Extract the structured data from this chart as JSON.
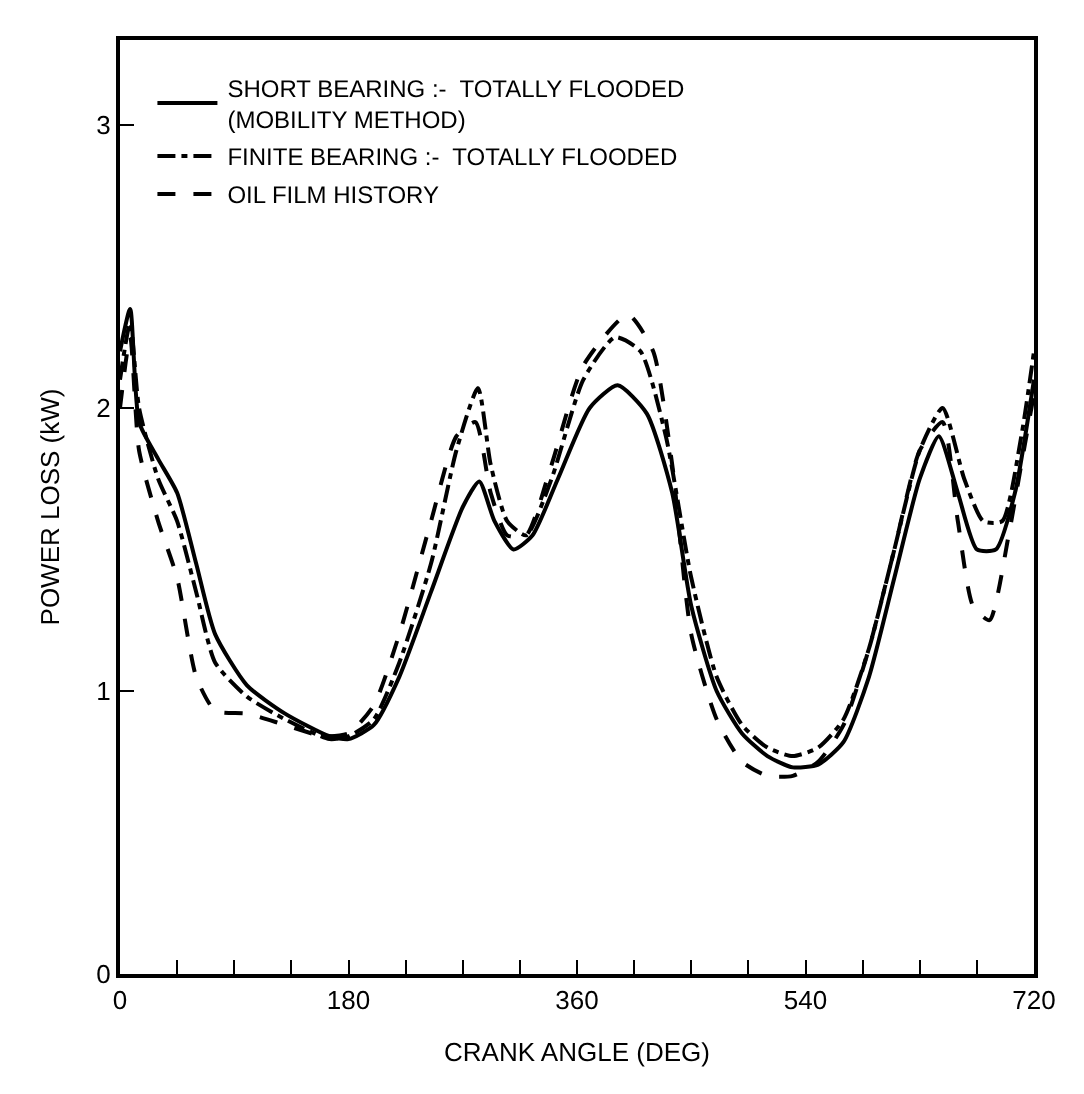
{
  "chart_data": {
    "type": "line",
    "xlabel": "CRANK ANGLE (DEG)",
    "ylabel": "POWER LOSS (kW)",
    "xlim": [
      0,
      720
    ],
    "xticks": [
      0,
      {
        "value": 45,
        "label": null
      },
      {
        "value": 90,
        "label": null
      },
      {
        "value": 135,
        "label": null
      },
      180,
      {
        "value": 225,
        "label": null
      },
      {
        "value": 270,
        "label": null
      },
      {
        "value": 315,
        "label": null
      },
      360,
      {
        "value": 405,
        "label": null
      },
      {
        "value": 450,
        "label": null
      },
      {
        "value": 495,
        "label": null
      },
      540,
      {
        "value": 585,
        "label": null
      },
      {
        "value": 630,
        "label": null
      },
      {
        "value": 675,
        "label": null
      },
      720
    ],
    "ylim": [
      0,
      3.3
    ],
    "yticks": [
      0,
      1,
      2,
      3
    ],
    "legend": "top left",
    "marker": "none",
    "series": [
      {
        "name": "SHORT BEARING :-  TOTALLY FLOODED\n(MOBILITY METHOD)",
        "color": "#000000",
        "line_style": "solid",
        "x": [
          0,
          8,
          15,
          30,
          45,
          60,
          75,
          100,
          130,
          165,
          180,
          200,
          220,
          245,
          270,
          283,
          295,
          310,
          325,
          345,
          370,
          392,
          415,
          435,
          450,
          470,
          490,
          510,
          530,
          550,
          570,
          590,
          610,
          630,
          645,
          660,
          675,
          690,
          705,
          720
        ],
        "values": [
          2.2,
          2.35,
          1.95,
          1.82,
          1.7,
          1.45,
          1.2,
          1.02,
          0.92,
          0.84,
          0.83,
          0.88,
          1.05,
          1.35,
          1.65,
          1.74,
          1.6,
          1.5,
          1.55,
          1.75,
          2.0,
          2.08,
          1.98,
          1.7,
          1.3,
          1.0,
          0.85,
          0.77,
          0.73,
          0.74,
          0.82,
          1.05,
          1.4,
          1.75,
          1.9,
          1.7,
          1.5,
          1.5,
          1.7,
          2.1
        ]
      },
      {
        "name": "FINITE BEARING :-  TOTALLY FLOODED",
        "color": "#000000",
        "line_style": "dashdot",
        "x": [
          0,
          8,
          15,
          30,
          45,
          60,
          75,
          100,
          130,
          165,
          180,
          200,
          220,
          245,
          265,
          282,
          292,
          305,
          320,
          340,
          365,
          390,
          410,
          430,
          450,
          470,
          490,
          510,
          530,
          550,
          570,
          590,
          610,
          630,
          648,
          665,
          680,
          695,
          710,
          720
        ],
        "values": [
          2.1,
          2.3,
          2.0,
          1.75,
          1.6,
          1.35,
          1.1,
          0.98,
          0.9,
          0.83,
          0.84,
          0.9,
          1.1,
          1.45,
          1.85,
          2.07,
          1.8,
          1.6,
          1.55,
          1.75,
          2.1,
          2.25,
          2.2,
          1.9,
          1.4,
          1.05,
          0.88,
          0.8,
          0.77,
          0.8,
          0.9,
          1.15,
          1.5,
          1.85,
          2.0,
          1.75,
          1.6,
          1.6,
          1.9,
          2.2
        ]
      },
      {
        "name": "OIL FILM HISTORY",
        "color": "#000000",
        "line_style": "dashed",
        "x": [
          0,
          8,
          15,
          30,
          45,
          60,
          75,
          100,
          130,
          160,
          180,
          200,
          220,
          245,
          265,
          280,
          292,
          305,
          320,
          340,
          365,
          400,
          420,
          435,
          450,
          470,
          490,
          510,
          530,
          550,
          570,
          590,
          610,
          630,
          648,
          660,
          672,
          685,
          700,
          710,
          720
        ],
        "values": [
          2.0,
          2.25,
          1.85,
          1.6,
          1.4,
          1.05,
          0.93,
          0.92,
          0.88,
          0.84,
          0.85,
          0.95,
          1.2,
          1.6,
          1.9,
          1.95,
          1.7,
          1.55,
          1.55,
          1.8,
          2.15,
          2.33,
          2.2,
          1.8,
          1.2,
          0.9,
          0.75,
          0.7,
          0.7,
          0.75,
          0.88,
          1.15,
          1.5,
          1.85,
          1.95,
          1.6,
          1.3,
          1.25,
          1.55,
          1.8,
          2.05
        ]
      }
    ]
  }
}
